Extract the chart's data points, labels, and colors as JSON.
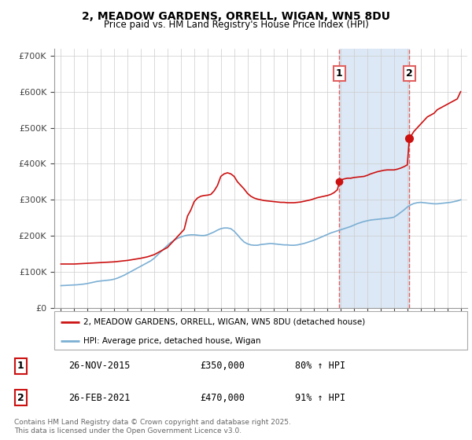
{
  "title": "2, MEADOW GARDENS, ORRELL, WIGAN, WN5 8DU",
  "subtitle": "Price paid vs. HM Land Registry's House Price Index (HPI)",
  "hpi_color": "#7bafd4",
  "property_color": "#cc1111",
  "vline_color": "#e06060",
  "bg_highlight_color": "#dce8f5",
  "yticks": [
    0,
    100000,
    200000,
    300000,
    400000,
    500000,
    600000,
    700000
  ],
  "ytick_labels": [
    "£0",
    "£100K",
    "£200K",
    "£300K",
    "£400K",
    "£500K",
    "£600K",
    "£700K"
  ],
  "purchase1_date": 2015.9,
  "purchase1_price": 350000,
  "purchase1_label": "1",
  "purchase2_date": 2021.15,
  "purchase2_price": 470000,
  "purchase2_label": "2",
  "legend_entry1": "2, MEADOW GARDENS, ORRELL, WIGAN, WN5 8DU (detached house)",
  "legend_entry2": "HPI: Average price, detached house, Wigan",
  "table_row1": [
    "1",
    "26-NOV-2015",
    "£350,000",
    "80% ↑ HPI"
  ],
  "table_row2": [
    "2",
    "26-FEB-2021",
    "£470,000",
    "91% ↑ HPI"
  ],
  "footnote": "Contains HM Land Registry data © Crown copyright and database right 2025.\nThis data is licensed under the Open Government Licence v3.0.",
  "hpi_years": [
    1995.0,
    1995.25,
    1995.5,
    1995.75,
    1996.0,
    1996.25,
    1996.5,
    1996.75,
    1997.0,
    1997.25,
    1997.5,
    1997.75,
    1998.0,
    1998.25,
    1998.5,
    1998.75,
    1999.0,
    1999.25,
    1999.5,
    1999.75,
    2000.0,
    2000.25,
    2000.5,
    2000.75,
    2001.0,
    2001.25,
    2001.5,
    2001.75,
    2002.0,
    2002.25,
    2002.5,
    2002.75,
    2003.0,
    2003.25,
    2003.5,
    2003.75,
    2004.0,
    2004.25,
    2004.5,
    2004.75,
    2005.0,
    2005.25,
    2005.5,
    2005.75,
    2006.0,
    2006.25,
    2006.5,
    2006.75,
    2007.0,
    2007.25,
    2007.5,
    2007.75,
    2008.0,
    2008.25,
    2008.5,
    2008.75,
    2009.0,
    2009.25,
    2009.5,
    2009.75,
    2010.0,
    2010.25,
    2010.5,
    2010.75,
    2011.0,
    2011.25,
    2011.5,
    2011.75,
    2012.0,
    2012.25,
    2012.5,
    2012.75,
    2013.0,
    2013.25,
    2013.5,
    2013.75,
    2014.0,
    2014.25,
    2014.5,
    2014.75,
    2015.0,
    2015.25,
    2015.5,
    2015.75,
    2016.0,
    2016.25,
    2016.5,
    2016.75,
    2017.0,
    2017.25,
    2017.5,
    2017.75,
    2018.0,
    2018.25,
    2018.5,
    2018.75,
    2019.0,
    2019.25,
    2019.5,
    2019.75,
    2020.0,
    2020.25,
    2020.5,
    2020.75,
    2021.0,
    2021.25,
    2021.5,
    2021.75,
    2022.0,
    2022.25,
    2022.5,
    2022.75,
    2023.0,
    2023.25,
    2023.5,
    2023.75,
    2024.0,
    2024.25,
    2024.5,
    2024.75,
    2025.0
  ],
  "hpi_values": [
    62000,
    62500,
    63000,
    63500,
    64000,
    64500,
    65500,
    66500,
    68000,
    70000,
    72000,
    74000,
    75000,
    76000,
    77000,
    78000,
    80000,
    83000,
    87000,
    91000,
    96000,
    101000,
    106000,
    111000,
    116000,
    121000,
    126000,
    131000,
    138000,
    147000,
    156000,
    165000,
    174000,
    182000,
    188000,
    193000,
    197000,
    200000,
    202000,
    203000,
    203000,
    202000,
    201000,
    201000,
    203000,
    207000,
    211000,
    216000,
    220000,
    222000,
    222000,
    220000,
    213000,
    203000,
    192000,
    183000,
    178000,
    175000,
    174000,
    174000,
    176000,
    177000,
    178000,
    179000,
    178000,
    177000,
    176000,
    175000,
    175000,
    174000,
    174000,
    175000,
    177000,
    179000,
    182000,
    185000,
    188000,
    192000,
    196000,
    200000,
    204000,
    208000,
    211000,
    214000,
    217000,
    220000,
    223000,
    226000,
    230000,
    234000,
    237000,
    240000,
    242000,
    244000,
    245000,
    246000,
    247000,
    248000,
    249000,
    250000,
    252000,
    258000,
    265000,
    272000,
    280000,
    286000,
    290000,
    292000,
    293000,
    292000,
    291000,
    290000,
    289000,
    289000,
    290000,
    291000,
    292000,
    293000,
    295000,
    297000,
    300000
  ],
  "prop_years": [
    1995.0,
    1995.5,
    1996.0,
    1996.5,
    1997.0,
    1997.5,
    1998.0,
    1998.5,
    1999.0,
    1999.5,
    2000.0,
    2000.5,
    2001.0,
    2001.5,
    2002.0,
    2002.5,
    2003.0,
    2003.25,
    2003.5,
    2003.75,
    2004.0,
    2004.25,
    2004.5,
    2004.75,
    2005.0,
    2005.25,
    2005.5,
    2005.75,
    2006.0,
    2006.25,
    2006.5,
    2006.75,
    2007.0,
    2007.25,
    2007.5,
    2007.75,
    2008.0,
    2008.25,
    2008.5,
    2008.75,
    2009.0,
    2009.25,
    2009.5,
    2009.75,
    2010.0,
    2010.25,
    2010.5,
    2010.75,
    2011.0,
    2011.25,
    2011.5,
    2011.75,
    2012.0,
    2012.25,
    2012.5,
    2012.75,
    2013.0,
    2013.25,
    2013.5,
    2013.75,
    2014.0,
    2014.25,
    2014.5,
    2014.75,
    2015.0,
    2015.25,
    2015.5,
    2015.75,
    2015.9,
    2016.0,
    2016.25,
    2016.5,
    2016.75,
    2017.0,
    2017.25,
    2017.5,
    2017.75,
    2018.0,
    2018.25,
    2018.5,
    2018.75,
    2019.0,
    2019.25,
    2019.5,
    2019.75,
    2020.0,
    2020.25,
    2020.5,
    2020.75,
    2021.0,
    2021.15,
    2021.5,
    2021.75,
    2022.0,
    2022.25,
    2022.5,
    2022.75,
    2023.0,
    2023.25,
    2023.5,
    2023.75,
    2024.0,
    2024.25,
    2024.5,
    2024.75,
    2025.0
  ],
  "prop_values": [
    122000,
    122000,
    122000,
    123000,
    124000,
    125000,
    126000,
    127000,
    128000,
    130000,
    132000,
    135000,
    138000,
    142000,
    148000,
    158000,
    168000,
    178000,
    188000,
    198000,
    208000,
    218000,
    255000,
    272000,
    295000,
    305000,
    310000,
    312000,
    313000,
    315000,
    325000,
    340000,
    365000,
    372000,
    375000,
    372000,
    365000,
    350000,
    340000,
    330000,
    318000,
    310000,
    305000,
    302000,
    300000,
    298000,
    297000,
    296000,
    295000,
    294000,
    293000,
    293000,
    292000,
    292000,
    292000,
    293000,
    294000,
    296000,
    298000,
    300000,
    303000,
    306000,
    308000,
    310000,
    312000,
    315000,
    320000,
    328000,
    350000,
    355000,
    358000,
    360000,
    360000,
    362000,
    363000,
    364000,
    365000,
    368000,
    372000,
    375000,
    378000,
    380000,
    382000,
    383000,
    383000,
    383000,
    385000,
    388000,
    392000,
    397000,
    470000,
    490000,
    500000,
    510000,
    520000,
    530000,
    535000,
    540000,
    550000,
    555000,
    560000,
    565000,
    570000,
    575000,
    580000,
    600000
  ]
}
